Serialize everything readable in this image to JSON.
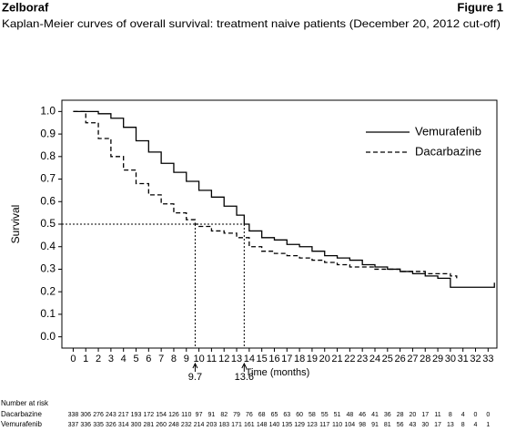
{
  "header": {
    "brand": "Zelboraf",
    "figure": "Figure 1"
  },
  "chart_data": {
    "type": "step",
    "title": "Kaplan-Meier curves of overall survival: treatment naive patients (December 20, 2012 cut-off)",
    "xlabel": "Time (months)",
    "ylabel": "Survival",
    "xlim": [
      -0.9,
      33.7
    ],
    "ylim": [
      -0.05,
      1.05
    ],
    "xticks": [
      0,
      1,
      2,
      3,
      4,
      5,
      6,
      7,
      8,
      9,
      10,
      11,
      12,
      13,
      14,
      15,
      16,
      17,
      18,
      19,
      20,
      21,
      22,
      23,
      24,
      25,
      26,
      27,
      28,
      29,
      30,
      31,
      32,
      33
    ],
    "yticks": [
      {
        "value": 0,
        "label": "0.0"
      },
      0.1,
      0.2,
      0.3,
      0.4,
      0.5,
      0.6,
      0.7,
      0.8,
      0.9,
      {
        "value": 1,
        "label": "1.0"
      }
    ],
    "legend": "upper right",
    "reference_y": 0.5,
    "annotations": [
      9.7,
      13.6
    ],
    "series": [
      {
        "name": "Vemurafenib",
        "color": "#000000",
        "dash": false,
        "x": [
          0,
          1,
          2,
          3,
          4,
          5,
          6,
          7,
          8,
          9,
          10,
          11,
          12,
          13,
          13.6,
          14,
          15,
          16,
          17,
          18,
          19,
          20,
          21,
          22,
          23,
          24,
          25,
          26,
          27,
          28,
          29,
          30,
          31,
          32,
          33,
          33.5
        ],
        "values": [
          1.0,
          1.0,
          0.99,
          0.97,
          0.93,
          0.87,
          0.82,
          0.77,
          0.73,
          0.69,
          0.65,
          0.62,
          0.58,
          0.54,
          0.5,
          0.47,
          0.44,
          0.43,
          0.41,
          0.4,
          0.38,
          0.36,
          0.35,
          0.34,
          0.32,
          0.31,
          0.3,
          0.29,
          0.28,
          0.27,
          0.26,
          0.22,
          0.22,
          0.22,
          0.22,
          0.24
        ]
      },
      {
        "name": "Dacarbazine",
        "color": "#000000",
        "dash": true,
        "x": [
          0,
          1,
          2,
          3,
          4,
          5,
          6,
          7,
          8,
          9,
          9.7,
          10,
          11,
          12,
          13,
          14,
          15,
          16,
          17,
          18,
          19,
          20,
          21,
          22,
          23,
          24,
          25,
          26,
          27,
          28,
          29,
          30,
          30.5
        ],
        "values": [
          1.0,
          0.95,
          0.88,
          0.8,
          0.74,
          0.68,
          0.63,
          0.59,
          0.55,
          0.52,
          0.5,
          0.49,
          0.47,
          0.46,
          0.44,
          0.4,
          0.38,
          0.37,
          0.36,
          0.35,
          0.34,
          0.33,
          0.32,
          0.31,
          0.31,
          0.3,
          0.3,
          0.29,
          0.29,
          0.28,
          0.28,
          0.27,
          0.26
        ]
      }
    ],
    "risk_table": {
      "title": "Number at risk",
      "rows": [
        {
          "name": "Dacarbazine",
          "values": [
            338,
            306,
            276,
            243,
            217,
            193,
            172,
            154,
            126,
            110,
            97,
            91,
            82,
            79,
            76,
            68,
            65,
            63,
            60,
            58,
            55,
            51,
            48,
            46,
            41,
            36,
            28,
            20,
            17,
            11,
            8,
            4,
            0,
            0
          ]
        },
        {
          "name": "Vemurafenib",
          "values": [
            337,
            336,
            335,
            326,
            314,
            300,
            281,
            260,
            248,
            232,
            214,
            203,
            183,
            171,
            161,
            148,
            140,
            135,
            129,
            123,
            117,
            110,
            104,
            98,
            91,
            81,
            56,
            43,
            30,
            17,
            13,
            8,
            4,
            1
          ]
        }
      ]
    }
  }
}
